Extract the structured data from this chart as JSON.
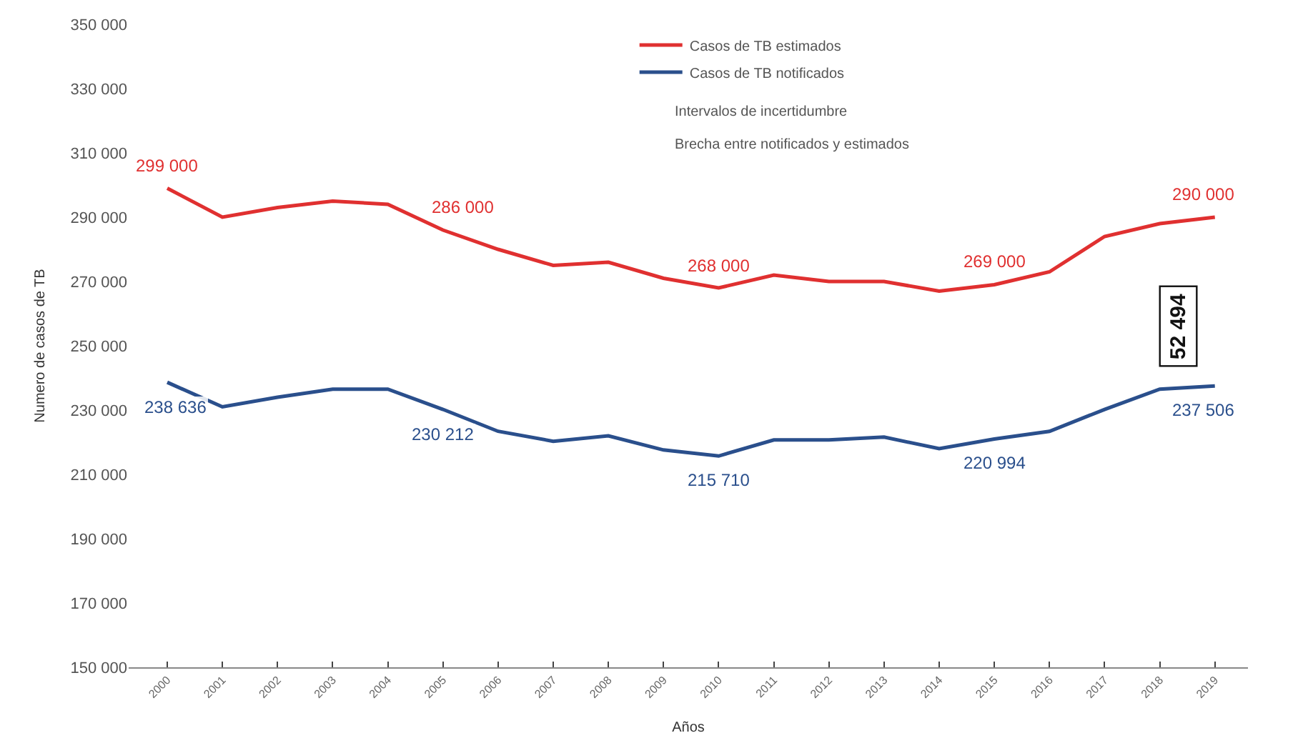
{
  "chart_data": {
    "type": "line",
    "xlabel": "Años",
    "ylabel": "Numero de casos de TB",
    "x": [
      2000,
      2001,
      2002,
      2003,
      2004,
      2005,
      2006,
      2007,
      2008,
      2009,
      2010,
      2011,
      2012,
      2013,
      2014,
      2015,
      2016,
      2017,
      2018,
      2019
    ],
    "series": [
      {
        "name": "Casos de TB estimados",
        "color": "#e03030",
        "values": [
          299000,
          290000,
          293000,
          295000,
          294000,
          286000,
          280000,
          275000,
          276000,
          271000,
          268000,
          272000,
          270000,
          270000,
          267000,
          269000,
          273000,
          284000,
          288000,
          290000
        ],
        "value_labels": [
          "299 000",
          null,
          null,
          null,
          null,
          "286 000",
          null,
          null,
          null,
          null,
          "268 000",
          null,
          null,
          null,
          null,
          "269 000",
          null,
          null,
          null,
          "290 000"
        ]
      },
      {
        "name": "Casos de TB notificados",
        "color": "#2a4f8c",
        "values": [
          238636,
          231000,
          234000,
          236500,
          236500,
          230212,
          223400,
          220300,
          222000,
          217600,
          215710,
          220700,
          220700,
          221600,
          218000,
          220994,
          223400,
          230200,
          236500,
          237506
        ],
        "value_labels": [
          "238 636",
          null,
          null,
          null,
          null,
          "230 212",
          null,
          null,
          null,
          null,
          "215 710",
          null,
          null,
          null,
          null,
          "220 994",
          null,
          null,
          null,
          "237 506"
        ]
      }
    ],
    "xlim": [
      1999.3,
      2019.6
    ],
    "xticks": [
      2000,
      2001,
      2002,
      2003,
      2004,
      2005,
      2006,
      2007,
      2008,
      2009,
      2010,
      2011,
      2012,
      2013,
      2014,
      2015,
      2016,
      2017,
      2018,
      2019
    ],
    "ylim": [
      150000,
      350000
    ],
    "yticks": [
      {
        "value": 150000,
        "label": "150 000"
      },
      {
        "value": 170000,
        "label": "170 000"
      },
      {
        "value": 190000,
        "label": "190 000"
      },
      {
        "value": 210000,
        "label": "210 000"
      },
      {
        "value": 230000,
        "label": "230 000"
      },
      {
        "value": 250000,
        "label": "250 000"
      },
      {
        "value": 270000,
        "label": "270 000"
      },
      {
        "value": 290000,
        "label": "290 000"
      },
      {
        "value": 310000,
        "label": "310 000"
      },
      {
        "value": 330000,
        "label": "330 000"
      },
      {
        "value": 350000,
        "label": "350 000"
      }
    ],
    "annotations": [
      "Intervalos de incertidumbre",
      "Brecha entre notificados y estimados",
      "52 494"
    ],
    "legend": "top right",
    "marker": "none",
    "line_style": "solid"
  }
}
